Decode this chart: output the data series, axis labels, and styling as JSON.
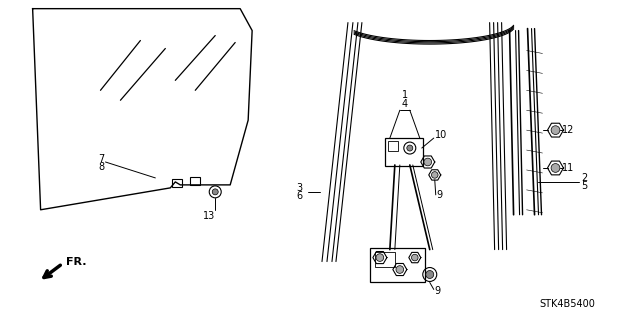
{
  "bg_color": "#ffffff",
  "fig_width": 6.4,
  "fig_height": 3.19,
  "diagram_code": "STK4B5400",
  "line_color": "#000000",
  "text_color": "#000000"
}
